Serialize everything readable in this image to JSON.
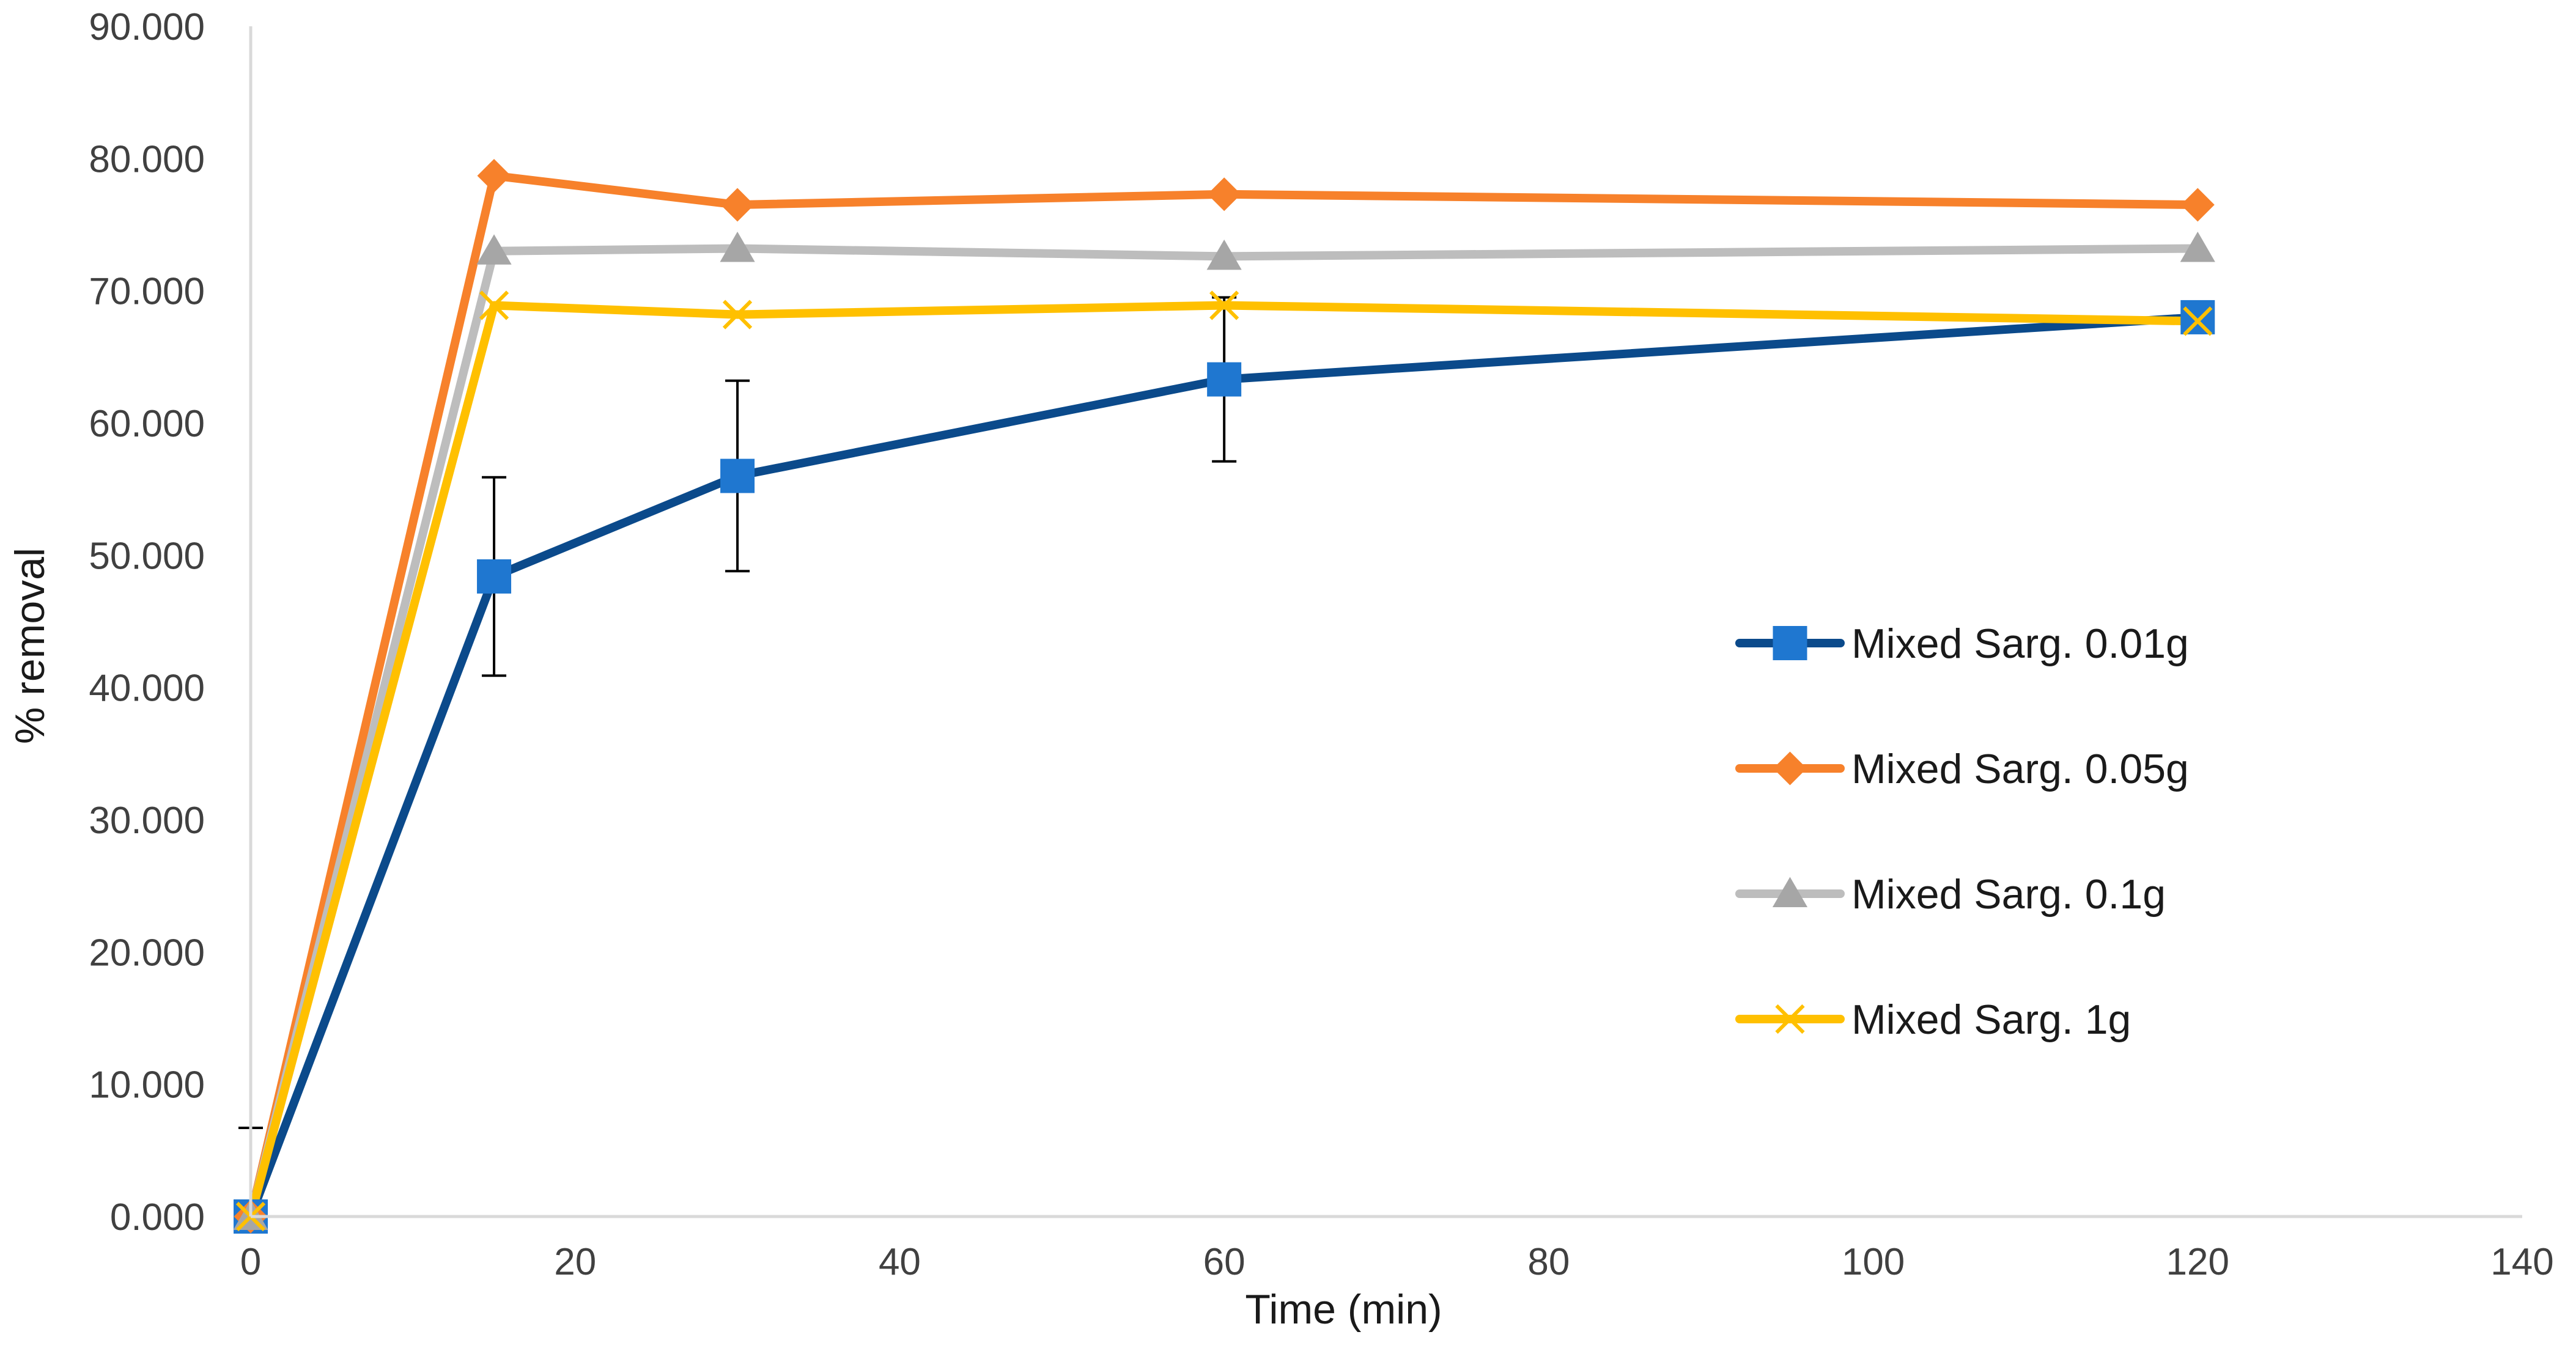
{
  "chart_data": {
    "type": "line",
    "title": "",
    "xlabel": "Time (min)",
    "ylabel": "% removal",
    "xlim": [
      0,
      140
    ],
    "ylim": [
      0,
      90
    ],
    "x_ticks": [
      0,
      20,
      40,
      60,
      80,
      100,
      120,
      140
    ],
    "y_ticks": [
      "0.000",
      "10.000",
      "20.000",
      "30.000",
      "40.000",
      "50.000",
      "60.000",
      "70.000",
      "80.000",
      "90.000"
    ],
    "grid": false,
    "legend_position": "right",
    "x": [
      0,
      15,
      30,
      60,
      120
    ],
    "series": [
      {
        "name": "Mixed Sarg. 0.01g",
        "color": "#0b4a8b",
        "marker_color": "#1f77d0",
        "marker": "square",
        "values": [
          0.0,
          48.4,
          56.0,
          63.3,
          68.0
        ],
        "error": [
          6.7,
          7.5,
          7.2,
          6.2,
          0.0
        ]
      },
      {
        "name": "Mixed Sarg. 0.05g",
        "color": "#f7812b",
        "marker_color": "#f7812b",
        "marker": "diamond",
        "values": [
          0.0,
          78.7,
          76.5,
          77.3,
          76.5
        ]
      },
      {
        "name": "Mixed Sarg. 0.1g",
        "color": "#bdbdbd",
        "marker_color": "#a6a6a6",
        "marker": "triangle",
        "values": [
          0.0,
          73.0,
          73.2,
          72.6,
          73.2
        ]
      },
      {
        "name": "Mixed Sarg. 1g",
        "color": "#ffc000",
        "marker_color": "#ffc000",
        "marker": "x",
        "values": [
          0.0,
          68.9,
          68.2,
          68.9,
          67.7
        ]
      }
    ]
  }
}
